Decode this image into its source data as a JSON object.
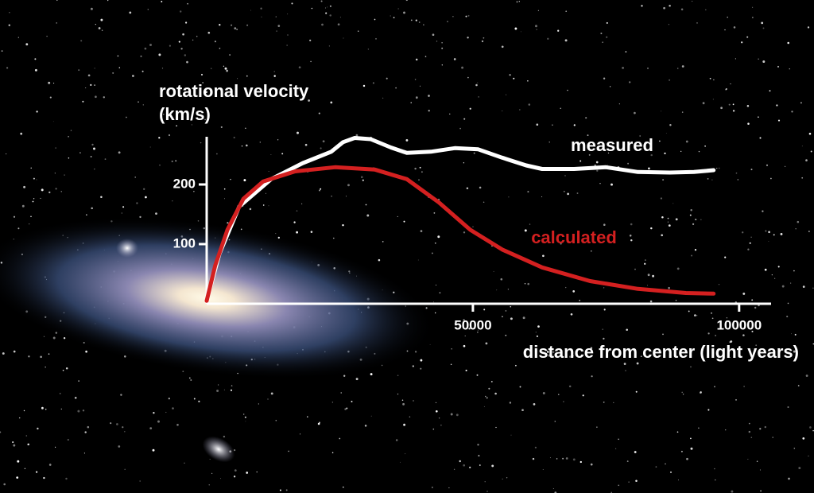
{
  "chart_data": {
    "type": "line",
    "y_label": [
      "rotational velocity",
      "(km/s)"
    ],
    "x_label": "distance from center (light years)",
    "xlim": [
      0,
      106000
    ],
    "xticks": [
      50000,
      100000
    ],
    "ylim": [
      0,
      280
    ],
    "yticks": [
      100,
      200
    ],
    "series": [
      {
        "name": "measured",
        "color": "#ffffff",
        "x": [
          0,
          2400,
          6100,
          12100,
          18100,
          23400,
          25600,
          27800,
          30800,
          34600,
          37600,
          42100,
          46600,
          51000,
          55500,
          60000,
          63000,
          69000,
          75000,
          81000,
          87000,
          91500,
          95200
        ],
        "values": [
          5,
          84,
          163,
          209,
          236,
          255,
          271,
          278,
          276,
          262,
          253,
          255,
          261,
          259,
          245,
          232,
          226,
          226,
          229,
          221,
          220,
          221,
          224
        ]
      },
      {
        "name": "calculated",
        "color": "#d42020",
        "x": [
          0,
          1600,
          3900,
          6900,
          10600,
          16600,
          24100,
          31600,
          37600,
          43600,
          49500,
          55500,
          63000,
          72000,
          81000,
          90000,
          95200
        ],
        "values": [
          5,
          64,
          124,
          176,
          205,
          222,
          229,
          225,
          209,
          170,
          124,
          91,
          61,
          38,
          25,
          18,
          17
        ]
      }
    ]
  }
}
